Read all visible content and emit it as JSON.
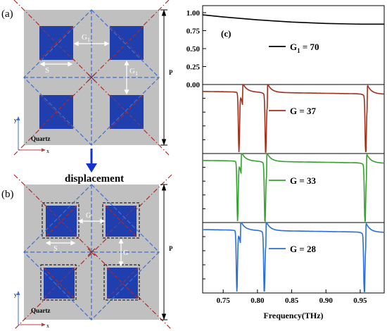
{
  "panel_a": {
    "label": "(a)",
    "substrate": "Quartz",
    "dim_s": "S",
    "dim_g1_top": "G",
    "dim_g1_top_sub": "1",
    "dim_g1_right": "G",
    "dim_g1_right_sub": "1",
    "dim_p": "P",
    "axis_y": "y",
    "axis_x": "x"
  },
  "arrow_label": "displacement",
  "panel_b": {
    "label": "(b)",
    "substrate": "Quartz",
    "dim_s": "S",
    "dim_g_top": "G",
    "dim_g_right": "G",
    "dim_p": "P",
    "axis_y": "y",
    "axis_x": "x"
  },
  "colors": {
    "substrate": "#c0c0c0",
    "square": "#1f3fae",
    "square_dark": "#13278a",
    "dash_red": "#b42a2a",
    "dash_blue": "#3f6fd0",
    "arrow": "#1432d2",
    "curve_top": "#000000",
    "curve_g37": "#a0301c",
    "curve_g33": "#35a12f",
    "curve_g28": "#2a6fd8"
  },
  "chart_data": {
    "type": "line",
    "label": "(c)",
    "xlabel": "Frequency(THz)",
    "xlim": [
      0.72,
      0.985
    ],
    "x_ticks": [
      "0.75",
      "0.80",
      "0.85",
      "0.90",
      "0.95"
    ],
    "x_tick_values": [
      0.75,
      0.8,
      0.85,
      0.9,
      0.95
    ],
    "y_ticks": [
      "1.00",
      "0.75",
      "0.50",
      "0.25",
      "0.00"
    ],
    "y_tick_values": [
      1.0,
      0.75,
      0.5,
      0.25,
      0.0
    ],
    "ylim": [
      0,
      1
    ],
    "series": [
      {
        "name": "G1 = 70",
        "legend_main": "G",
        "legend_sub": "1",
        "legend_rest": " = 70",
        "x": [
          0.72,
          0.75,
          0.8,
          0.85,
          0.9,
          0.95,
          0.985
        ],
        "y": [
          0.97,
          0.94,
          0.9,
          0.87,
          0.85,
          0.84,
          0.84
        ]
      },
      {
        "name": "G = 37",
        "legend_main": "G = 37",
        "dips": [
          0.773,
          0.812,
          0.958
        ],
        "rises": [
          0.779,
          0.815,
          0.961
        ],
        "baseline": 0.9
      },
      {
        "name": "G = 33",
        "legend_main": "G = 33",
        "dips": [
          0.771,
          0.811,
          0.957
        ],
        "rises": [
          0.777,
          0.814,
          0.96
        ],
        "baseline": 0.9
      },
      {
        "name": "G = 28",
        "legend_main": "G = 28",
        "dips": [
          0.77,
          0.81,
          0.956
        ],
        "rises": [
          0.776,
          0.813,
          0.959
        ],
        "baseline": 0.9
      }
    ]
  }
}
